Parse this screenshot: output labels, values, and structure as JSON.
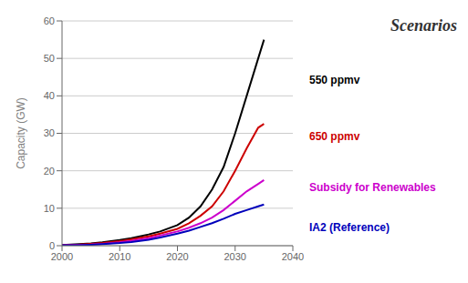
{
  "chart_data": {
    "type": "line",
    "title": "Scenarios",
    "ylabel": "Capacity (GW)",
    "x": [
      2000,
      2003,
      2005,
      2007,
      2010,
      2012,
      2015,
      2017,
      2020,
      2022,
      2024,
      2026,
      2028,
      2030,
      2032,
      2034,
      2035
    ],
    "series": [
      {
        "name": "550 ppmv",
        "color": "#000000",
        "values": [
          0.2,
          0.4,
          0.6,
          0.9,
          1.5,
          2.0,
          3.0,
          3.8,
          5.5,
          7.5,
          10.5,
          15.0,
          21.0,
          30.0,
          40.0,
          50.0,
          55.0
        ]
      },
      {
        "name": "650 ppmv",
        "color": "#cc0000",
        "values": [
          0.2,
          0.3,
          0.5,
          0.7,
          1.2,
          1.7,
          2.5,
          3.2,
          4.5,
          6.0,
          8.0,
          10.5,
          14.5,
          20.0,
          26.0,
          31.5,
          32.5
        ]
      },
      {
        "name": "Subsidy for Renewables",
        "color": "#cc00cc",
        "values": [
          0.1,
          0.2,
          0.3,
          0.5,
          0.9,
          1.3,
          2.0,
          2.7,
          3.8,
          4.8,
          6.0,
          7.5,
          9.5,
          12.0,
          14.5,
          16.5,
          17.5
        ]
      },
      {
        "name": "IA2 (Reference)",
        "color": "#0000bb",
        "values": [
          0.1,
          0.15,
          0.25,
          0.4,
          0.7,
          1.0,
          1.6,
          2.2,
          3.2,
          4.0,
          5.0,
          6.0,
          7.2,
          8.5,
          9.5,
          10.5,
          11.0
        ]
      }
    ],
    "xlim": [
      2000,
      2040
    ],
    "ylim": [
      0,
      60
    ],
    "xticks": [
      2000,
      2010,
      2020,
      2030,
      2040
    ],
    "yticks": [
      0,
      10,
      20,
      30,
      40,
      50,
      60
    ],
    "grid": true,
    "annotations": [
      {
        "text": "550 ppmv",
        "color": "#000000"
      },
      {
        "text": "650 ppmv",
        "color": "#cc0000"
      },
      {
        "text": "Subsidy for Renewables",
        "color": "#cc00cc"
      },
      {
        "text": "IA2 (Reference)",
        "color": "#0000bb"
      }
    ]
  }
}
